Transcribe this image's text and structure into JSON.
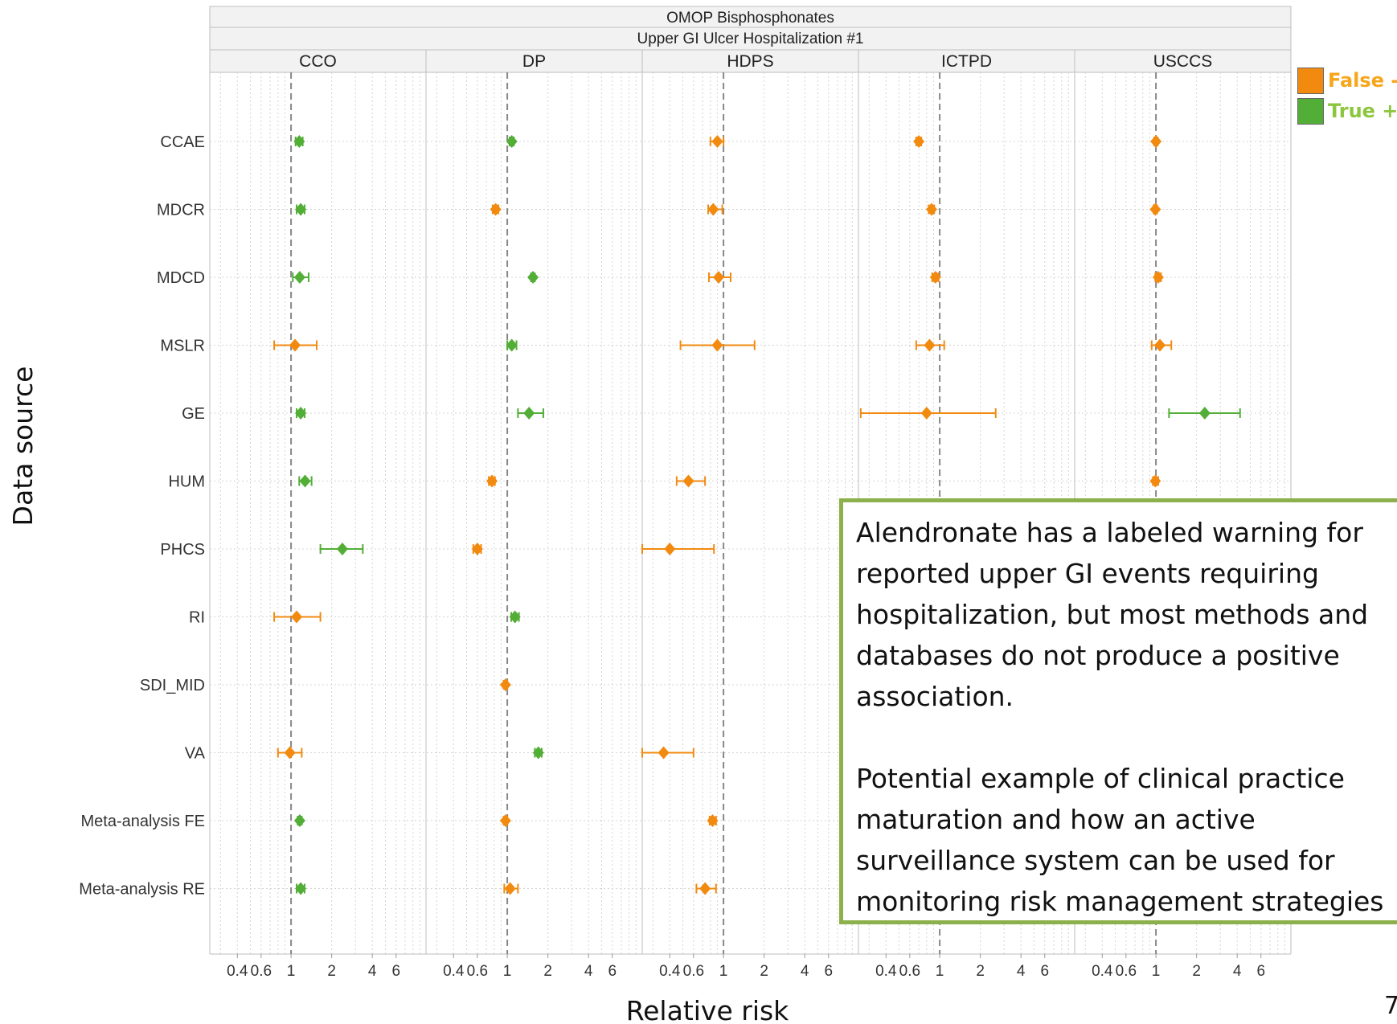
{
  "chart_data": {
    "type": "scatter",
    "title": "OMOP Bisphosphonates",
    "subtitle": "Upper GI Ulcer Hospitalization  #1",
    "xlabel": "Relative risk",
    "ylabel": "Data source",
    "x_scale": "log",
    "xlim": [
      0.25,
      10
    ],
    "xticks": [
      0.4,
      0.6,
      1,
      2,
      4,
      6
    ],
    "xtick_labels": [
      "0.4",
      "0.6",
      "1",
      "2",
      "4",
      "6"
    ],
    "reference_line": 1,
    "grid": true,
    "facets": [
      "CCO",
      "DP",
      "HDPS",
      "ICTPD",
      "USCCS"
    ],
    "rows": [
      "CCAE",
      "MDCR",
      "MDCD",
      "MSLR",
      "GE",
      "HUM",
      "PHCS",
      "RI",
      "SDI_MID",
      "VA",
      "Meta-analysis FE",
      "Meta-analysis RE"
    ],
    "colors": {
      "False -": "#f28a10",
      "True +": "#52ae36"
    },
    "points": [
      {
        "facet": "CCO",
        "row": "CCAE",
        "rr": 1.15,
        "lo": 1.08,
        "hi": 1.22,
        "group": "True +"
      },
      {
        "facet": "CCO",
        "row": "MDCR",
        "rr": 1.18,
        "lo": 1.1,
        "hi": 1.26,
        "group": "True +"
      },
      {
        "facet": "CCO",
        "row": "MDCD",
        "rr": 1.16,
        "lo": 1.03,
        "hi": 1.35,
        "group": "True +"
      },
      {
        "facet": "CCO",
        "row": "MSLR",
        "rr": 1.07,
        "lo": 0.75,
        "hi": 1.55,
        "group": "False -"
      },
      {
        "facet": "CCO",
        "row": "GE",
        "rr": 1.18,
        "lo": 1.1,
        "hi": 1.26,
        "group": "True +"
      },
      {
        "facet": "CCO",
        "row": "HUM",
        "rr": 1.27,
        "lo": 1.15,
        "hi": 1.42,
        "group": "True +"
      },
      {
        "facet": "CCO",
        "row": "PHCS",
        "rr": 2.4,
        "lo": 1.65,
        "hi": 3.4,
        "group": "True +"
      },
      {
        "facet": "CCO",
        "row": "RI",
        "rr": 1.1,
        "lo": 0.75,
        "hi": 1.65,
        "group": "False -"
      },
      {
        "facet": "CCO",
        "row": "VA",
        "rr": 0.98,
        "lo": 0.8,
        "hi": 1.2,
        "group": "False -"
      },
      {
        "facet": "CCO",
        "row": "Meta-analysis FE",
        "rr": 1.16,
        "lo": 1.12,
        "hi": 1.2,
        "group": "True +"
      },
      {
        "facet": "CCO",
        "row": "Meta-analysis RE",
        "rr": 1.18,
        "lo": 1.1,
        "hi": 1.26,
        "group": "True +"
      },
      {
        "facet": "DP",
        "row": "CCAE",
        "rr": 1.08,
        "lo": 1.04,
        "hi": 1.12,
        "group": "True +"
      },
      {
        "facet": "DP",
        "row": "MDCR",
        "rr": 0.82,
        "lo": 0.78,
        "hi": 0.86,
        "group": "False -"
      },
      {
        "facet": "DP",
        "row": "MDCD",
        "rr": 1.55,
        "lo": 1.5,
        "hi": 1.6,
        "group": "True +"
      },
      {
        "facet": "DP",
        "row": "MSLR",
        "rr": 1.08,
        "lo": 1.0,
        "hi": 1.17,
        "group": "True +"
      },
      {
        "facet": "DP",
        "row": "GE",
        "rr": 1.45,
        "lo": 1.2,
        "hi": 1.85,
        "group": "True +"
      },
      {
        "facet": "DP",
        "row": "HUM",
        "rr": 0.77,
        "lo": 0.73,
        "hi": 0.81,
        "group": "False -"
      },
      {
        "facet": "DP",
        "row": "PHCS",
        "rr": 0.6,
        "lo": 0.56,
        "hi": 0.64,
        "group": "False -"
      },
      {
        "facet": "DP",
        "row": "RI",
        "rr": 1.14,
        "lo": 1.07,
        "hi": 1.22,
        "group": "True +"
      },
      {
        "facet": "DP",
        "row": "SDI_MID",
        "rr": 0.97,
        "lo": 0.94,
        "hi": 1.0,
        "group": "False -"
      },
      {
        "facet": "DP",
        "row": "VA",
        "rr": 1.7,
        "lo": 1.6,
        "hi": 1.8,
        "group": "True +"
      },
      {
        "facet": "DP",
        "row": "Meta-analysis FE",
        "rr": 0.97,
        "lo": 0.94,
        "hi": 1.0,
        "group": "False -"
      },
      {
        "facet": "DP",
        "row": "Meta-analysis RE",
        "rr": 1.05,
        "lo": 0.95,
        "hi": 1.2,
        "group": "False -"
      },
      {
        "facet": "HDPS",
        "row": "CCAE",
        "rr": 0.9,
        "lo": 0.8,
        "hi": 1.0,
        "group": "False -"
      },
      {
        "facet": "HDPS",
        "row": "MDCR",
        "rr": 0.84,
        "lo": 0.77,
        "hi": 0.98,
        "group": "False -"
      },
      {
        "facet": "HDPS",
        "row": "MDCD",
        "rr": 0.92,
        "lo": 0.78,
        "hi": 1.13,
        "group": "False -"
      },
      {
        "facet": "HDPS",
        "row": "MSLR",
        "rr": 0.9,
        "lo": 0.48,
        "hi": 1.7,
        "group": "False -"
      },
      {
        "facet": "HDPS",
        "row": "HUM",
        "rr": 0.55,
        "lo": 0.45,
        "hi": 0.73,
        "group": "False -"
      },
      {
        "facet": "HDPS",
        "row": "PHCS",
        "rr": 0.4,
        "lo": 0.25,
        "hi": 0.85,
        "group": "False -"
      },
      {
        "facet": "HDPS",
        "row": "VA",
        "rr": 0.36,
        "lo": 0.25,
        "hi": 0.6,
        "group": "False -"
      },
      {
        "facet": "HDPS",
        "row": "Meta-analysis FE",
        "rr": 0.83,
        "lo": 0.79,
        "hi": 0.88,
        "group": "False -"
      },
      {
        "facet": "HDPS",
        "row": "Meta-analysis RE",
        "rr": 0.73,
        "lo": 0.63,
        "hi": 0.88,
        "group": "False -"
      },
      {
        "facet": "ICTPD",
        "row": "CCAE",
        "rr": 0.7,
        "lo": 0.67,
        "hi": 0.73,
        "group": "False -"
      },
      {
        "facet": "ICTPD",
        "row": "MDCR",
        "rr": 0.87,
        "lo": 0.83,
        "hi": 0.91,
        "group": "False -"
      },
      {
        "facet": "ICTPD",
        "row": "MDCD",
        "rr": 0.93,
        "lo": 0.88,
        "hi": 0.98,
        "group": "False -"
      },
      {
        "facet": "ICTPD",
        "row": "MSLR",
        "rr": 0.84,
        "lo": 0.67,
        "hi": 1.08,
        "group": "False -"
      },
      {
        "facet": "ICTPD",
        "row": "GE",
        "rr": 0.8,
        "lo": 0.26,
        "hi": 2.6,
        "group": "False -"
      },
      {
        "facet": "USCCS",
        "row": "CCAE",
        "rr": 1.0,
        "lo": 0.97,
        "hi": 1.03,
        "group": "False -"
      },
      {
        "facet": "USCCS",
        "row": "MDCR",
        "rr": 0.99,
        "lo": 0.96,
        "hi": 1.02,
        "group": "False -"
      },
      {
        "facet": "USCCS",
        "row": "MDCD",
        "rr": 1.04,
        "lo": 0.99,
        "hi": 1.09,
        "group": "False -"
      },
      {
        "facet": "USCCS",
        "row": "MSLR",
        "rr": 1.07,
        "lo": 0.93,
        "hi": 1.3,
        "group": "False -"
      },
      {
        "facet": "USCCS",
        "row": "GE",
        "rr": 2.3,
        "lo": 1.25,
        "hi": 4.2,
        "group": "True +"
      },
      {
        "facet": "USCCS",
        "row": "HUM",
        "rr": 0.99,
        "lo": 0.95,
        "hi": 1.04,
        "group": "False -"
      }
    ]
  },
  "legend": [
    {
      "label": "False -",
      "color": "#f28a10"
    },
    {
      "label": "True +",
      "color": "#52ae36"
    }
  ],
  "callout": {
    "paragraph_1": "Alendronate has a labeled warning for reported upper GI events requiring hospitalization, but most methods and databases do not produce a positive association.",
    "paragraph_2": "Potential example of clinical practice maturation and how an active surveillance system can be used for monitoring risk management strategies"
  },
  "page_number": "7"
}
